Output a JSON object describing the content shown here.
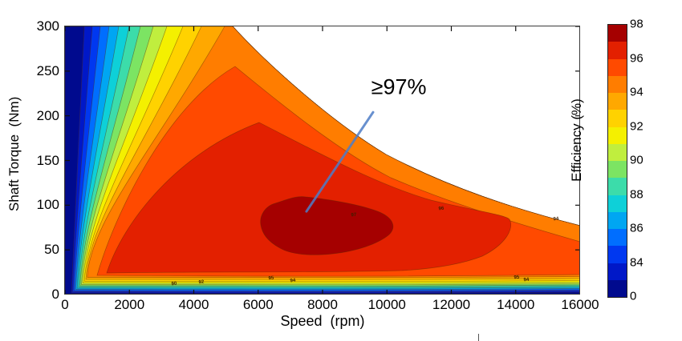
{
  "chart_data": {
    "type": "contour",
    "title": "",
    "xlabel": "Speed  (rpm)",
    "ylabel": "Shaft Torque  (Nm)",
    "xlim": [
      0,
      16000
    ],
    "ylim": [
      0,
      300
    ],
    "x_ticks": [
      0,
      2000,
      4000,
      6000,
      8000,
      10000,
      12000,
      14000,
      16000
    ],
    "y_ticks": [
      0,
      50,
      100,
      150,
      200,
      250,
      300
    ],
    "grid": false,
    "legend_position": "colorbar-right",
    "contour_levels_pct": [
      83,
      84,
      85,
      86,
      87,
      88,
      89,
      90,
      91,
      92,
      93,
      94,
      95,
      96,
      97
    ],
    "colormap": {
      "0-83": "#000a8e",
      "83": "#0018c8",
      "84": "#0038f0",
      "85": "#006eff",
      "86": "#00a6f2",
      "87": "#0ed0d8",
      "88": "#3cdcaa",
      "89": "#7ce463",
      "90": "#c0ee3e",
      "91": "#f4f000",
      "92": "#ffd200",
      "93": "#ffa800",
      "94": "#ff7d00",
      "95": "#ff4a00",
      "96": "#e32000",
      "97": "#a50000"
    },
    "colorbar": {
      "label": "Efficiency (%)",
      "tick_labels": [
        "98",
        "96",
        "94",
        "92",
        "90",
        "88",
        "86",
        "84",
        "0"
      ],
      "segments_top_to_bottom": [
        {
          "range": "97-98",
          "color": "#a50000"
        },
        {
          "range": "96-97",
          "color": "#e32000"
        },
        {
          "range": "95-96",
          "color": "#ff4a00"
        },
        {
          "range": "94-95",
          "color": "#ff7d00"
        },
        {
          "range": "93-94",
          "color": "#ffa800"
        },
        {
          "range": "92-93",
          "color": "#ffd200"
        },
        {
          "range": "91-92",
          "color": "#f4f000"
        },
        {
          "range": "90-91",
          "color": "#c0ee3e"
        },
        {
          "range": "89-90",
          "color": "#7ce463"
        },
        {
          "range": "88-89",
          "color": "#3cdcaa"
        },
        {
          "range": "87-88",
          "color": "#0ed0d8"
        },
        {
          "range": "86-87",
          "color": "#00a6f2"
        },
        {
          "range": "85-86",
          "color": "#006eff"
        },
        {
          "range": "84-85",
          "color": "#0038f0"
        },
        {
          "range": "83-84",
          "color": "#0018c8"
        },
        {
          "range": "0-83",
          "color": "#000a8e"
        }
      ]
    },
    "torque_envelope_speed_nm": [
      [
        0,
        300
      ],
      [
        5200,
        300
      ],
      [
        8000,
        200
      ],
      [
        10500,
        141
      ],
      [
        13000,
        104
      ],
      [
        16000,
        78
      ]
    ],
    "peak_efficiency_region": {
      "label": "97",
      "speed_rpm": [
        6000,
        10300
      ],
      "torque_nm": [
        45,
        108
      ]
    },
    "annotation": {
      "text": "≥97%",
      "text_color": "#000000",
      "leader_line_color": "#4d7cc7",
      "text_at": {
        "speed": 10370,
        "torque": 232
      },
      "leader_from": {
        "speed": 9570,
        "torque": 204
      },
      "leader_to": {
        "speed": 7500,
        "torque": 93
      }
    },
    "contour_line_labels": [
      {
        "text": "97",
        "speed": 8970,
        "torque": 89
      },
      {
        "text": "96",
        "speed": 11700,
        "torque": 96
      },
      {
        "text": "94",
        "speed": 15250,
        "torque": 84
      },
      {
        "text": "95",
        "speed": 6400,
        "torque": 18
      },
      {
        "text": "94",
        "speed": 7080,
        "torque": 15
      },
      {
        "text": "92",
        "speed": 4240,
        "torque": 13
      },
      {
        "text": "90",
        "speed": 3390,
        "torque": 12
      },
      {
        "text": "95",
        "speed": 14030,
        "torque": 19
      },
      {
        "text": "94",
        "speed": 14330,
        "torque": 16
      }
    ]
  }
}
